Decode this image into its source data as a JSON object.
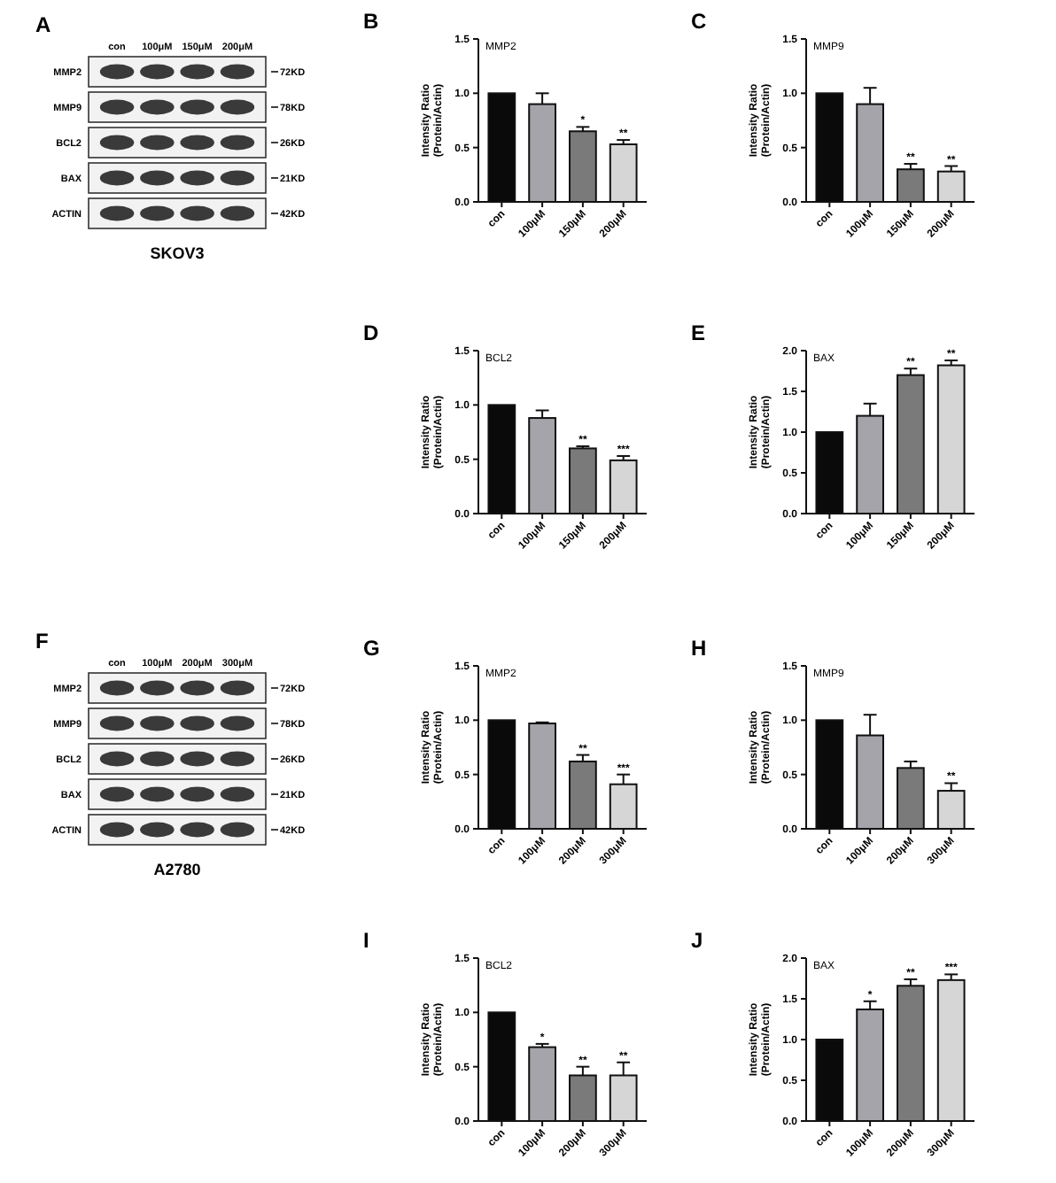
{
  "chart_data": [
    {
      "type": "other",
      "annotations": [
        "A"
      ],
      "categories": [
        "con",
        "100μM",
        "150μM",
        "200μM"
      ],
      "y_categories": [
        "MMP2",
        "MMP9",
        "BCL2",
        "BAX",
        "ACTIN"
      ],
      "y2_categories": [
        "72KD",
        "78KD",
        "26KD",
        "21KD",
        "42KD"
      ],
      "xlabel": "SKOV3"
    },
    {
      "type": "bar",
      "title": "MMP2",
      "ylabel": "Intensity Ratio (Protein/Actin)",
      "categories": [
        "con",
        "100μM",
        "150μM",
        "200μM"
      ],
      "values": [
        1.0,
        0.9,
        0.65,
        0.53
      ],
      "colors": [
        "#0a0a0a",
        "#a5a4ab",
        "#7a7a7a",
        "#d6d6d6"
      ],
      "errors": [
        null,
        [
          0.9,
          1.0
        ],
        [
          0.65,
          0.69
        ],
        [
          0.53,
          0.57
        ]
      ],
      "ylim": [
        0,
        1.5
      ],
      "yticks": [
        {
          "value": 0,
          "label": "0.0"
        },
        {
          "value": 0.5,
          "label": "0.5"
        },
        {
          "value": 1,
          "label": "1.0"
        },
        {
          "value": 1.5,
          "label": "1.5"
        }
      ],
      "annotations": [
        "B",
        {
          "text": "*",
          "x": "150μM",
          "y": 0.69
        },
        {
          "text": "**",
          "x": "200μM",
          "y": 0.57
        }
      ]
    },
    {
      "type": "bar",
      "title": "MMP9",
      "ylabel": "Intensity Ratio (Protein/Actin)",
      "categories": [
        "con",
        "100μM",
        "150μM",
        "200μM"
      ],
      "values": [
        1.0,
        0.9,
        0.3,
        0.28
      ],
      "colors": [
        "#0a0a0a",
        "#a5a4ab",
        "#7a7a7a",
        "#d6d6d6"
      ],
      "errors": [
        null,
        [
          0.9,
          1.05
        ],
        [
          0.3,
          0.35
        ],
        [
          0.28,
          0.33
        ]
      ],
      "ylim": [
        0,
        1.5
      ],
      "yticks": [
        {
          "value": 0,
          "label": "0.0"
        },
        {
          "value": 0.5,
          "label": "0.5"
        },
        {
          "value": 1,
          "label": "1.0"
        },
        {
          "value": 1.5,
          "label": "1.5"
        }
      ],
      "annotations": [
        "C",
        {
          "text": "**",
          "x": "150μM",
          "y": 0.35
        },
        {
          "text": "**",
          "x": "200μM",
          "y": 0.33
        }
      ]
    },
    {
      "type": "bar",
      "title": "BCL2",
      "ylabel": "Intensity Ratio (Protein/Actin)",
      "categories": [
        "con",
        "100μM",
        "150μM",
        "200μM"
      ],
      "values": [
        1.0,
        0.88,
        0.6,
        0.49
      ],
      "colors": [
        "#0a0a0a",
        "#a5a4ab",
        "#7a7a7a",
        "#d6d6d6"
      ],
      "errors": [
        null,
        [
          0.88,
          0.95
        ],
        [
          0.6,
          0.62
        ],
        [
          0.49,
          0.53
        ]
      ],
      "ylim": [
        0,
        1.5
      ],
      "yticks": [
        {
          "value": 0,
          "label": "0.0"
        },
        {
          "value": 0.5,
          "label": "0.5"
        },
        {
          "value": 1,
          "label": "1.0"
        },
        {
          "value": 1.5,
          "label": "1.5"
        }
      ],
      "annotations": [
        "D",
        {
          "text": "**",
          "x": "150μM",
          "y": 0.62
        },
        {
          "text": "***",
          "x": "200μM",
          "y": 0.53
        }
      ]
    },
    {
      "type": "bar",
      "title": "BAX",
      "ylabel": "Intensity Ratio (Protein/Actin)",
      "categories": [
        "con",
        "100μM",
        "150μM",
        "200μM"
      ],
      "values": [
        1.0,
        1.2,
        1.7,
        1.82
      ],
      "colors": [
        "#0a0a0a",
        "#a5a4ab",
        "#7a7a7a",
        "#d6d6d6"
      ],
      "errors": [
        null,
        [
          1.2,
          1.35
        ],
        [
          1.7,
          1.78
        ],
        [
          1.82,
          1.88
        ]
      ],
      "ylim": [
        0,
        2
      ],
      "yticks": [
        {
          "value": 0,
          "label": "0.0"
        },
        {
          "value": 0.5,
          "label": "0.5"
        },
        {
          "value": 1,
          "label": "1.0"
        },
        {
          "value": 1.5,
          "label": "1.5"
        },
        {
          "value": 2,
          "label": "2.0"
        }
      ],
      "annotations": [
        "E",
        {
          "text": "**",
          "x": "150μM",
          "y": 1.78
        },
        {
          "text": "**",
          "x": "200μM",
          "y": 1.88
        }
      ]
    },
    {
      "type": "other",
      "annotations": [
        "F"
      ],
      "categories": [
        "con",
        "100μM",
        "200μM",
        "300μM"
      ],
      "y_categories": [
        "MMP2",
        "MMP9",
        "BCL2",
        "BAX",
        "ACTIN"
      ],
      "y2_categories": [
        "72KD",
        "78KD",
        "26KD",
        "21KD",
        "42KD"
      ],
      "xlabel": "A2780"
    },
    {
      "type": "bar",
      "title": "MMP2",
      "ylabel": "Intensity Ratio (Protein/Actin)",
      "categories": [
        "con",
        "100μM",
        "200μM",
        "300μM"
      ],
      "values": [
        1.0,
        0.97,
        0.62,
        0.41
      ],
      "colors": [
        "#0a0a0a",
        "#a5a4ab",
        "#7a7a7a",
        "#d6d6d6"
      ],
      "errors": [
        null,
        [
          0.97,
          0.98
        ],
        [
          0.62,
          0.68
        ],
        [
          0.41,
          0.5
        ]
      ],
      "ylim": [
        0,
        1.5
      ],
      "yticks": [
        {
          "value": 0,
          "label": "0.0"
        },
        {
          "value": 0.5,
          "label": "0.5"
        },
        {
          "value": 1,
          "label": "1.0"
        },
        {
          "value": 1.5,
          "label": "1.5"
        }
      ],
      "annotations": [
        "G",
        {
          "text": "**",
          "x": "200μM",
          "y": 0.68
        },
        {
          "text": "***",
          "x": "300μM",
          "y": 0.5
        }
      ]
    },
    {
      "type": "bar",
      "title": "MMP9",
      "ylabel": "Intensity Ratio (Protein/Actin)",
      "categories": [
        "con",
        "100μM",
        "200μM",
        "300μM"
      ],
      "values": [
        1.0,
        0.86,
        0.56,
        0.35
      ],
      "colors": [
        "#0a0a0a",
        "#a5a4ab",
        "#7a7a7a",
        "#d6d6d6"
      ],
      "errors": [
        null,
        [
          0.86,
          1.05
        ],
        [
          0.56,
          0.62
        ],
        [
          0.35,
          0.42
        ]
      ],
      "ylim": [
        0,
        1.5
      ],
      "yticks": [
        {
          "value": 0,
          "label": "0.0"
        },
        {
          "value": 0.5,
          "label": "0.5"
        },
        {
          "value": 1,
          "label": "1.0"
        },
        {
          "value": 1.5,
          "label": "1.5"
        }
      ],
      "annotations": [
        "H",
        {
          "text": "**",
          "x": "300μM",
          "y": 0.42
        }
      ]
    },
    {
      "type": "bar",
      "title": "BCL2",
      "ylabel": "Intensity Ratio (Protein/Actin)",
      "categories": [
        "con",
        "100μM",
        "200μM",
        "300μM"
      ],
      "values": [
        1.0,
        0.68,
        0.42,
        0.42
      ],
      "colors": [
        "#0a0a0a",
        "#a5a4ab",
        "#7a7a7a",
        "#d6d6d6"
      ],
      "errors": [
        null,
        [
          0.68,
          0.71
        ],
        [
          0.42,
          0.5
        ],
        [
          0.42,
          0.54
        ]
      ],
      "ylim": [
        0,
        1.5
      ],
      "yticks": [
        {
          "value": 0,
          "label": "0.0"
        },
        {
          "value": 0.5,
          "label": "0.5"
        },
        {
          "value": 1,
          "label": "1.0"
        },
        {
          "value": 1.5,
          "label": "1.5"
        }
      ],
      "annotations": [
        "I",
        {
          "text": "*",
          "x": "100μM",
          "y": 0.71
        },
        {
          "text": "**",
          "x": "200μM",
          "y": 0.5
        },
        {
          "text": "**",
          "x": "300μM",
          "y": 0.54
        }
      ]
    },
    {
      "type": "bar",
      "title": "BAX",
      "ylabel": "Intensity Ratio (Protein/Actin)",
      "categories": [
        "con",
        "100μM",
        "200μM",
        "300μM"
      ],
      "values": [
        1.0,
        1.37,
        1.66,
        1.73
      ],
      "colors": [
        "#0a0a0a",
        "#a5a4ab",
        "#7a7a7a",
        "#d6d6d6"
      ],
      "errors": [
        null,
        [
          1.37,
          1.47
        ],
        [
          1.66,
          1.74
        ],
        [
          1.73,
          1.8
        ]
      ],
      "ylim": [
        0,
        2
      ],
      "yticks": [
        {
          "value": 0,
          "label": "0.0"
        },
        {
          "value": 0.5,
          "label": "0.5"
        },
        {
          "value": 1,
          "label": "1.0"
        },
        {
          "value": 1.5,
          "label": "1.5"
        },
        {
          "value": 2,
          "label": "2.0"
        }
      ],
      "annotations": [
        "J",
        {
          "text": "*",
          "x": "100μM",
          "y": 1.47
        },
        {
          "text": "**",
          "x": "200μM",
          "y": 1.74
        },
        {
          "text": "***",
          "x": "300μM",
          "y": 1.8
        }
      ]
    }
  ]
}
